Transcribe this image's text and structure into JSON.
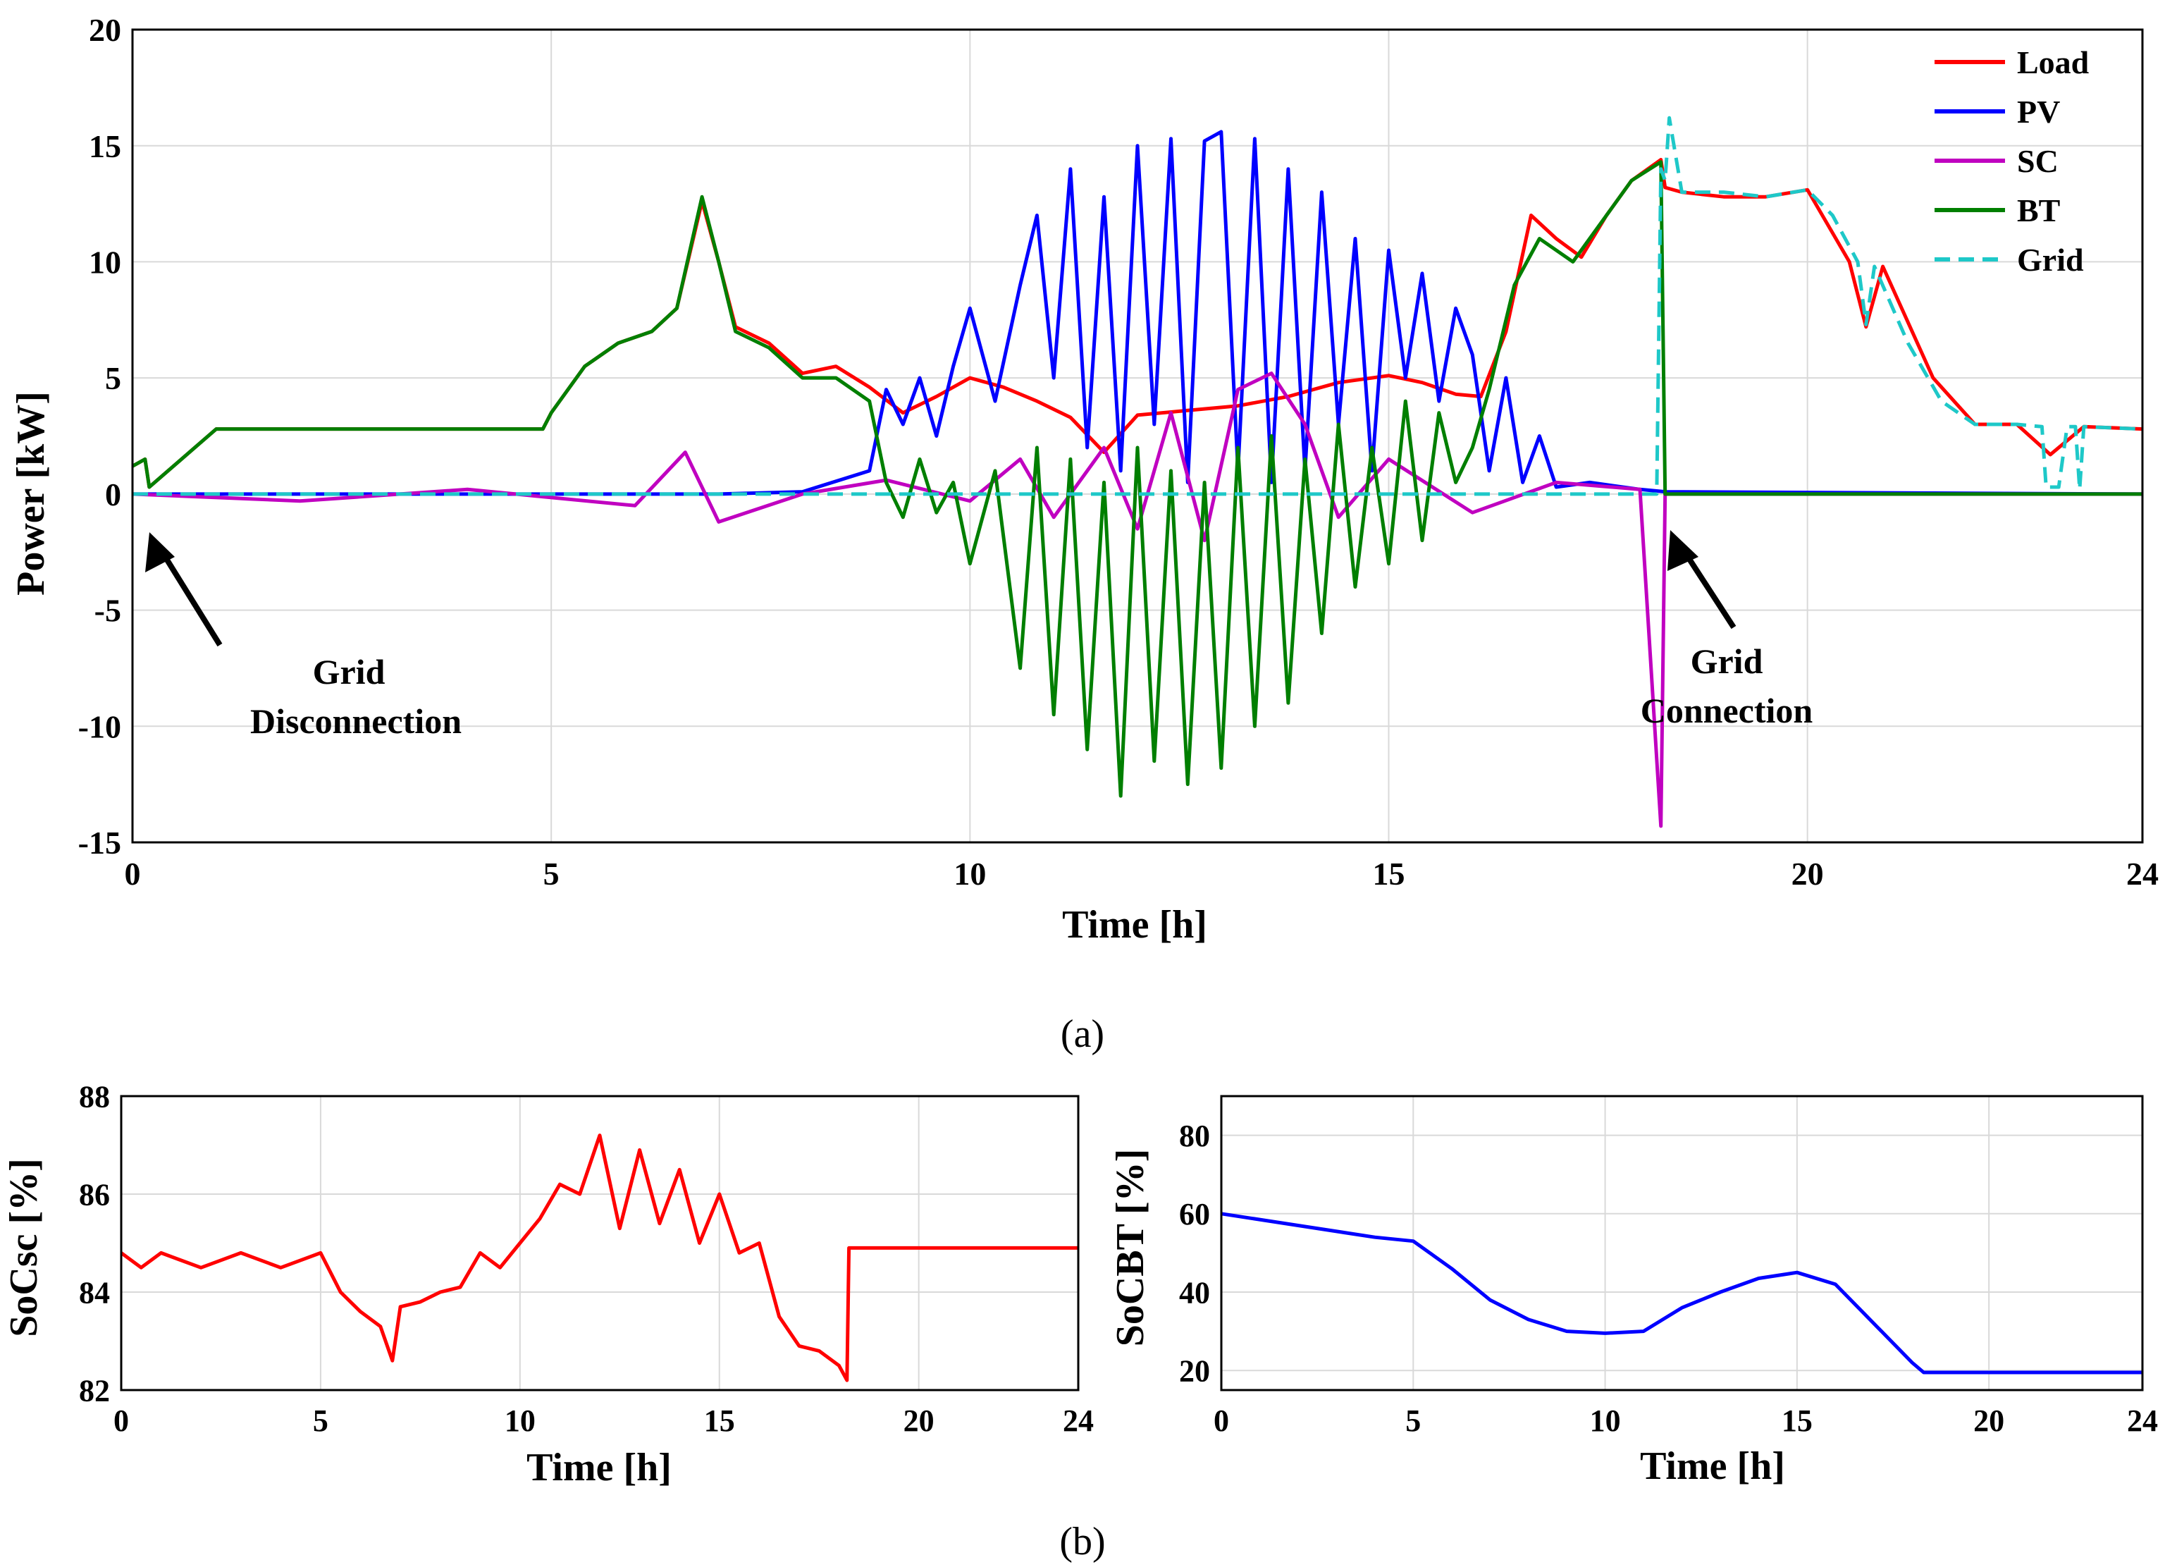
{
  "panel_a_caption": "(a)",
  "panel_b_caption": "(b)",
  "annotations": {
    "disconnect_line1": "Grid",
    "disconnect_line2": "Disconnection",
    "connect_line1": "Grid",
    "connect_line2": "Connection"
  },
  "colors": {
    "load": "#ff0000",
    "pv": "#0000ff",
    "sc": "#c000c0",
    "bt": "#007f00",
    "grid": "#1ec8c8"
  },
  "chart_data": [
    {
      "id": "power",
      "type": "line",
      "title": "",
      "xlabel": "Time [h]",
      "ylabel": "Power  [kW]",
      "xlim": [
        0,
        24
      ],
      "ylim": [
        -15,
        20
      ],
      "xticks": [
        "0",
        "5",
        "10",
        "15",
        "20",
        "24"
      ],
      "yticks": [
        "-15",
        "-10",
        "-5",
        "0",
        "5",
        "10",
        "15",
        "20"
      ],
      "grid": true,
      "legend_position": "top-right",
      "series": [
        {
          "name": "Load",
          "color": "#ff0000",
          "dash": "solid",
          "x": [
            0,
            0.15,
            0.2,
            1,
            2,
            3,
            4,
            4.9,
            5.0,
            5.4,
            5.8,
            6.2,
            6.5,
            6.8,
            7.0,
            7.2,
            7.6,
            8.0,
            8.4,
            8.8,
            9.2,
            9.6,
            10.0,
            10.4,
            10.8,
            11.2,
            11.6,
            12.0,
            12.6,
            13.2,
            13.8,
            14.4,
            15.0,
            15.4,
            15.8,
            16.1,
            16.4,
            16.7,
            17.0,
            17.3,
            17.6,
            17.9,
            18.25,
            18.3,
            18.5,
            19.0,
            19.5,
            20.0,
            20.5,
            20.7,
            20.9,
            21.5,
            22.0,
            22.5,
            22.9,
            23.3,
            24
          ],
          "y": [
            1.2,
            1.5,
            0.3,
            2.8,
            2.8,
            2.8,
            2.8,
            2.8,
            3.5,
            5.5,
            6.5,
            7.0,
            8.0,
            12.6,
            10.0,
            7.2,
            6.5,
            5.2,
            5.5,
            4.6,
            3.5,
            4.2,
            5.0,
            4.6,
            4.0,
            3.3,
            1.8,
            3.4,
            3.6,
            3.8,
            4.2,
            4.8,
            5.1,
            4.8,
            4.3,
            4.2,
            7.0,
            12.0,
            11.0,
            10.2,
            12.0,
            13.5,
            14.4,
            13.2,
            13.0,
            12.8,
            12.8,
            13.1,
            10.0,
            7.2,
            9.8,
            5.0,
            3.0,
            3.0,
            1.7,
            2.9,
            2.8
          ]
        },
        {
          "name": "PV",
          "color": "#0000ff",
          "dash": "solid",
          "x": [
            0,
            7.0,
            8.0,
            8.8,
            9.0,
            9.2,
            9.4,
            9.6,
            9.8,
            10.0,
            10.3,
            10.6,
            10.8,
            11.0,
            11.2,
            11.4,
            11.6,
            11.8,
            12.0,
            12.2,
            12.4,
            12.6,
            12.8,
            13.0,
            13.2,
            13.4,
            13.6,
            13.8,
            14.0,
            14.2,
            14.4,
            14.6,
            14.8,
            15.0,
            15.2,
            15.4,
            15.6,
            15.8,
            16.0,
            16.2,
            16.4,
            16.6,
            16.8,
            17.0,
            17.4,
            18.0,
            18.3,
            24
          ],
          "y": [
            0,
            0,
            0.1,
            1.0,
            4.5,
            3.0,
            5.0,
            2.5,
            5.5,
            8.0,
            4.0,
            9.0,
            12.0,
            5.0,
            14.0,
            2.0,
            12.8,
            1.0,
            15.0,
            3.0,
            15.3,
            0.5,
            15.2,
            15.6,
            1.0,
            15.3,
            0.5,
            14.0,
            1.0,
            13.0,
            3.0,
            11.0,
            1.0,
            10.5,
            5.0,
            9.5,
            4.0,
            8.0,
            6.0,
            1.0,
            5.0,
            0.5,
            2.5,
            0.3,
            0.5,
            0.2,
            0.1,
            0
          ]
        },
        {
          "name": "SC",
          "color": "#c000c0",
          "dash": "solid",
          "x": [
            0,
            2,
            4,
            6,
            6.6,
            7.0,
            8,
            9,
            10,
            10.6,
            11.0,
            11.6,
            12.0,
            12.4,
            12.8,
            13.2,
            13.6,
            14.0,
            14.4,
            15.0,
            16.0,
            17.0,
            18.0,
            18.25,
            18.3,
            18.4,
            24
          ],
          "y": [
            0,
            -0.3,
            0.2,
            -0.5,
            1.8,
            -1.2,
            0,
            0.6,
            -0.3,
            1.5,
            -1.0,
            2.0,
            -1.5,
            3.5,
            -2.0,
            4.5,
            5.2,
            3.0,
            -1.0,
            1.5,
            -0.8,
            0.5,
            0.2,
            -14.3,
            0,
            0,
            0
          ]
        },
        {
          "name": "BT",
          "color": "#007f00",
          "dash": "solid",
          "x": [
            0,
            0.15,
            0.2,
            1,
            2,
            3,
            4,
            4.9,
            5.0,
            5.4,
            5.8,
            6.2,
            6.5,
            6.8,
            7.0,
            7.2,
            7.6,
            8.0,
            8.4,
            8.8,
            9.0,
            9.2,
            9.4,
            9.6,
            9.8,
            10.0,
            10.3,
            10.6,
            10.8,
            11.0,
            11.2,
            11.4,
            11.6,
            11.8,
            12.0,
            12.2,
            12.4,
            12.6,
            12.8,
            13.0,
            13.2,
            13.4,
            13.6,
            13.8,
            14.0,
            14.2,
            14.4,
            14.6,
            14.8,
            15.0,
            15.2,
            15.4,
            15.6,
            15.8,
            16.0,
            16.2,
            16.5,
            16.8,
            17.2,
            17.6,
            17.9,
            18.25,
            18.3,
            24
          ],
          "y": [
            1.2,
            1.5,
            0.3,
            2.8,
            2.8,
            2.8,
            2.8,
            2.8,
            3.5,
            5.5,
            6.5,
            7.0,
            8.0,
            12.8,
            10.0,
            7.0,
            6.3,
            5.0,
            5.0,
            4.0,
            0.5,
            -1.0,
            1.5,
            -0.8,
            0.5,
            -3.0,
            1.0,
            -7.5,
            2.0,
            -9.5,
            1.5,
            -11.0,
            0.5,
            -13.0,
            2.0,
            -11.5,
            1.0,
            -12.5,
            0.5,
            -11.8,
            2.0,
            -10.0,
            2.5,
            -9.0,
            1.5,
            -6.0,
            3.0,
            -4.0,
            2.0,
            -3.0,
            4.0,
            -2.0,
            3.5,
            0.5,
            2.0,
            4.5,
            9.0,
            11.0,
            10.0,
            12.0,
            13.5,
            14.3,
            0,
            0
          ]
        },
        {
          "name": "Grid",
          "color": "#1ec8c8",
          "dash": "dashed",
          "x": [
            0,
            18.2,
            18.25,
            18.3,
            18.35,
            18.5,
            19.0,
            19.5,
            20.0,
            20.3,
            20.6,
            20.7,
            20.8,
            21.2,
            21.6,
            22.0,
            22.5,
            22.8,
            22.85,
            23.0,
            23.1,
            23.2,
            23.25,
            23.3,
            24
          ],
          "y": [
            0,
            0,
            14.0,
            13.5,
            16.2,
            13.0,
            13.0,
            12.8,
            13.1,
            12.0,
            10.0,
            7.3,
            9.8,
            6.5,
            4.0,
            3.0,
            3.0,
            2.9,
            0.3,
            0.3,
            2.9,
            2.9,
            0.2,
            2.9,
            2.8
          ]
        }
      ]
    },
    {
      "id": "socsc",
      "type": "line",
      "title": "",
      "xlabel": "Time [h]",
      "ylabel": "SoCsc [%]",
      "xlim": [
        0,
        24
      ],
      "ylim": [
        82,
        88
      ],
      "xticks": [
        "0",
        "5",
        "10",
        "15",
        "20",
        "24"
      ],
      "yticks": [
        "82",
        "84",
        "86",
        "88"
      ],
      "grid": true,
      "series": [
        {
          "name": "SoCsc",
          "color": "#ff0000",
          "x": [
            0,
            0.5,
            1,
            2,
            3,
            4,
            5,
            5.5,
            6,
            6.5,
            6.8,
            7,
            7.5,
            8,
            8.5,
            9,
            9.5,
            10,
            10.5,
            11,
            11.5,
            12,
            12.5,
            13,
            13.5,
            14,
            14.5,
            15,
            15.5,
            16,
            16.5,
            17,
            17.5,
            18,
            18.2,
            18.25,
            24
          ],
          "y": [
            84.8,
            84.5,
            84.8,
            84.5,
            84.8,
            84.5,
            84.8,
            84.0,
            83.6,
            83.3,
            82.6,
            83.7,
            83.8,
            84.0,
            84.1,
            84.8,
            84.5,
            85.0,
            85.5,
            86.2,
            86.0,
            87.2,
            85.3,
            86.9,
            85.4,
            86.5,
            85.0,
            86.0,
            84.8,
            85.0,
            83.5,
            82.9,
            82.8,
            82.5,
            82.2,
            84.9,
            84.9
          ]
        }
      ]
    },
    {
      "id": "socbt",
      "type": "line",
      "title": "",
      "xlabel": "Time [h]",
      "ylabel": "SoCBT [%]",
      "xlim": [
        0,
        24
      ],
      "ylim": [
        15,
        90
      ],
      "xticks": [
        "0",
        "5",
        "10",
        "15",
        "20",
        "24"
      ],
      "yticks": [
        "20",
        "40",
        "60",
        "80"
      ],
      "grid": true,
      "series": [
        {
          "name": "SoCBT",
          "color": "#0000ff",
          "x": [
            0,
            2,
            4,
            5,
            6,
            7,
            8,
            9,
            10,
            11,
            12,
            13,
            14,
            15,
            16,
            17,
            18,
            18.3,
            24
          ],
          "y": [
            60,
            57,
            54,
            53,
            46,
            38,
            33,
            30,
            29.5,
            30,
            36,
            40,
            43.5,
            45,
            42,
            32,
            22,
            19.5,
            19.5
          ]
        }
      ]
    }
  ]
}
